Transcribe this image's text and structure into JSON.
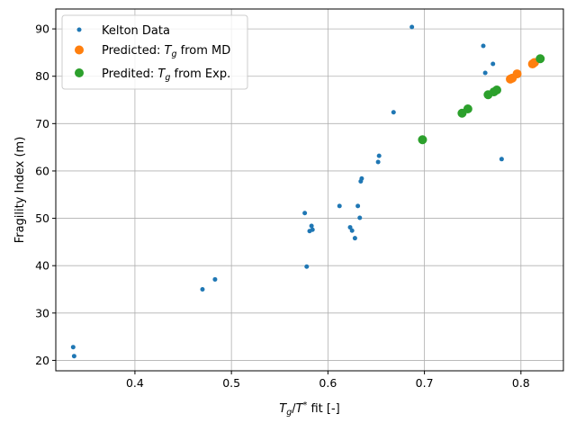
{
  "chart_data": {
    "type": "scatter",
    "xlabel_parts": {
      "t": "T",
      "g": "g",
      "slash": "/",
      "t2": "T",
      "star": "*",
      "rest": " fit [-]"
    },
    "ylabel": "Fragility Index (m)",
    "xlim": [
      0.318,
      0.844
    ],
    "ylim": [
      17.8,
      94.2
    ],
    "xticks": [
      0.4,
      0.5,
      0.6,
      0.7,
      0.8
    ],
    "yticks": [
      20,
      30,
      40,
      50,
      60,
      70,
      80,
      90
    ],
    "grid": true,
    "legend_position": "upper-left",
    "series": [
      {
        "name_parts": {
          "pre": "Kelton Data",
          "sub": "",
          "post": ""
        },
        "color": "#1f77b4",
        "marker": "small-dot",
        "points": [
          [
            0.336,
            22.8
          ],
          [
            0.337,
            20.9
          ],
          [
            0.47,
            35.0
          ],
          [
            0.483,
            37.1
          ],
          [
            0.576,
            51.1
          ],
          [
            0.578,
            39.8
          ],
          [
            0.581,
            47.3
          ],
          [
            0.583,
            48.4
          ],
          [
            0.584,
            47.6
          ],
          [
            0.612,
            52.6
          ],
          [
            0.623,
            48.1
          ],
          [
            0.625,
            47.4
          ],
          [
            0.628,
            45.8
          ],
          [
            0.631,
            52.6
          ],
          [
            0.633,
            50.1
          ],
          [
            0.634,
            57.8
          ],
          [
            0.635,
            58.4
          ],
          [
            0.652,
            61.9
          ],
          [
            0.653,
            63.2
          ],
          [
            0.668,
            72.4
          ],
          [
            0.687,
            90.4
          ],
          [
            0.761,
            86.4
          ],
          [
            0.763,
            80.7
          ],
          [
            0.771,
            82.6
          ],
          [
            0.78,
            62.5
          ]
        ]
      },
      {
        "name_parts": {
          "pre": "Predicted: ",
          "sub": "g",
          "post": " from MD"
        },
        "color": "#ff7f0e",
        "marker": "large-dot",
        "points": [
          [
            0.789,
            79.4
          ],
          [
            0.791,
            79.6
          ],
          [
            0.796,
            80.5
          ],
          [
            0.812,
            82.6
          ],
          [
            0.814,
            82.9
          ]
        ]
      },
      {
        "name_parts": {
          "pre": "Predited: ",
          "sub": "g",
          "post": " from Exp."
        },
        "color": "#2ca02c",
        "marker": "large-dot",
        "points": [
          [
            0.698,
            66.6
          ],
          [
            0.739,
            72.2
          ],
          [
            0.745,
            73.1
          ],
          [
            0.766,
            76.1
          ],
          [
            0.772,
            76.7
          ],
          [
            0.775,
            77.1
          ],
          [
            0.82,
            83.7
          ]
        ]
      }
    ]
  }
}
